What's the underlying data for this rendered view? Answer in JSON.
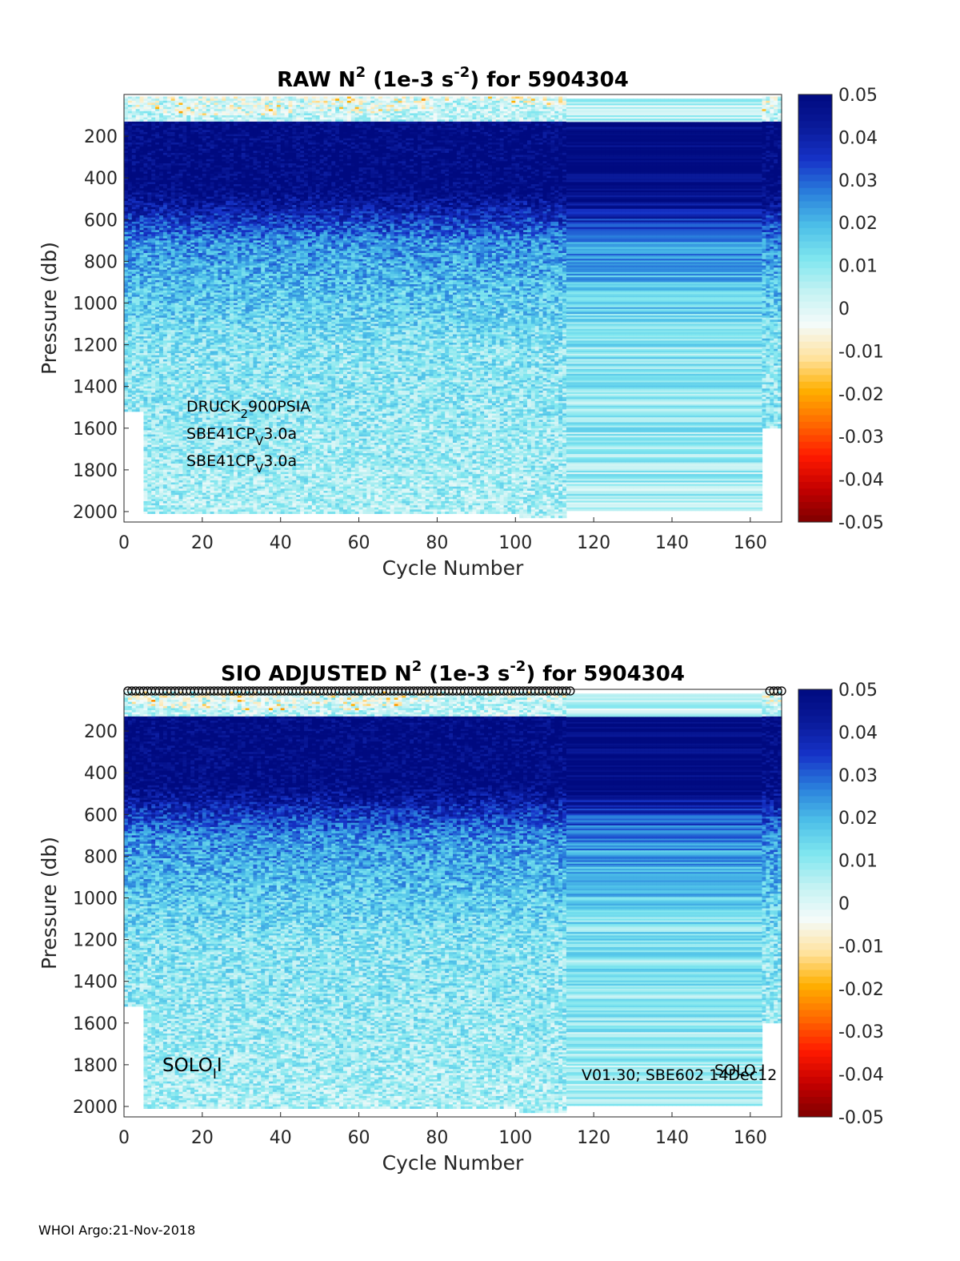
{
  "footer": "WHOI Argo:21-Nov-2018",
  "colors": {
    "colormap": [
      "#7f0000",
      "#c40000",
      "#ff1a00",
      "#ff6a00",
      "#ffb000",
      "#ffe3a0",
      "#f4fbfa",
      "#c4f2f3",
      "#7fe6ef",
      "#4cbfe8",
      "#2a7fdc",
      "#1633c8",
      "#0a1a9a",
      "#000a80"
    ]
  },
  "chart_data": [
    {
      "type": "heatmap",
      "title": {
        "prefix": "RAW N",
        "sup1": "2",
        "mid": " (1e-3 s",
        "sup2": "-2",
        "suffix": ") for 5904304"
      },
      "xlabel": "Cycle Number",
      "ylabel": "Pressure (db)",
      "xlim": [
        0,
        168
      ],
      "ylim": [
        2050,
        0
      ],
      "xticks": [
        "0",
        "20",
        "40",
        "60",
        "80",
        "100",
        "120",
        "140",
        "160"
      ],
      "yticks": [
        "200",
        "400",
        "600",
        "800",
        "1000",
        "1200",
        "1400",
        "1600",
        "1800",
        "2000"
      ],
      "colorbar": {
        "clim": [
          -0.05,
          0.05
        ],
        "ticks": [
          "0.05",
          "0.04",
          "0.03",
          "0.02",
          "0.01",
          "0",
          "-0.01",
          "-0.02",
          "-0.03",
          "-0.04",
          "-0.05"
        ]
      },
      "annotations": [
        {
          "base": "DRUCK",
          "sub": "2",
          "rest": "900PSIA"
        },
        {
          "base": "SBE41CP",
          "sub": "V",
          "rest": "3.0a"
        },
        {
          "base": "SBE41CP",
          "sub": "V",
          "rest": "3.0a"
        }
      ],
      "description_of_field": {
        "near_surface_0_to_150db": "mixed, values near 0 with occasional negative",
        "150_to_450db": 0.05,
        "450_to_700db": 0.03,
        "700_to_1200db": 0.012,
        "1200_to_2000db": 0.006,
        "cycles_114_to_163": "horizontally uniform repeated profile"
      },
      "markers": false
    },
    {
      "type": "heatmap",
      "title": {
        "prefix": "SIO  ADJUSTED N",
        "sup1": "2",
        "mid": " (1e-3 s",
        "sup2": "-2",
        "suffix": ") for 5904304"
      },
      "xlabel": "Cycle Number",
      "ylabel": "Pressure (db)",
      "xlim": [
        0,
        168
      ],
      "ylim": [
        2050,
        0
      ],
      "xticks": [
        "0",
        "20",
        "40",
        "60",
        "80",
        "100",
        "120",
        "140",
        "160"
      ],
      "yticks": [
        "200",
        "400",
        "600",
        "800",
        "1000",
        "1200",
        "1400",
        "1600",
        "1800",
        "2000"
      ],
      "colorbar": {
        "clim": [
          -0.05,
          0.05
        ],
        "ticks": [
          "0.05",
          "0.04",
          "0.03",
          "0.02",
          "0.01",
          "0",
          "-0.01",
          "-0.02",
          "-0.03",
          "-0.04",
          "-0.05"
        ]
      },
      "annotations": [
        {
          "base": "SOLO",
          "sub": "I",
          "rest": "I"
        },
        {
          "text": "V01.30; SBE602 14Dec12"
        },
        {
          "text": "SOLO I"
        }
      ],
      "markers": true,
      "marker_cycles_range": [
        1,
        114
      ],
      "marker_cycles_tail": [
        165,
        166,
        167,
        168
      ]
    }
  ]
}
